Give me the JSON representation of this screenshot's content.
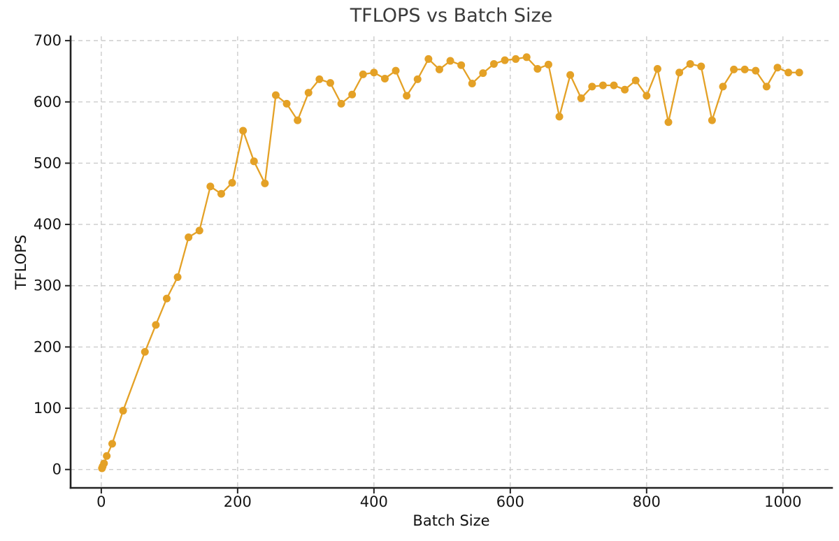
{
  "chart_data": {
    "type": "line",
    "title": "TFLOPS vs Batch Size",
    "xlabel": "Batch Size",
    "ylabel": "TFLOPS",
    "xlim": [
      -45,
      1072
    ],
    "ylim": [
      -30,
      707
    ],
    "xticks": [
      0,
      200,
      400,
      600,
      800,
      1000
    ],
    "yticks": [
      0,
      100,
      200,
      300,
      400,
      500,
      600,
      700
    ],
    "grid": true,
    "grid_style": "dashed",
    "legend_position": "none",
    "line_color": "#E4A126",
    "marker": "circle",
    "series": [
      {
        "name": "TFLOPS",
        "x": [
          1,
          2,
          4,
          8,
          16,
          32,
          64,
          80,
          96,
          112,
          128,
          144,
          160,
          176,
          192,
          208,
          224,
          240,
          256,
          272,
          288,
          304,
          320,
          336,
          352,
          368,
          384,
          400,
          416,
          432,
          448,
          464,
          480,
          496,
          512,
          528,
          544,
          560,
          576,
          592,
          608,
          624,
          640,
          656,
          672,
          688,
          704,
          720,
          736,
          752,
          768,
          784,
          800,
          816,
          832,
          848,
          864,
          880,
          896,
          912,
          928,
          944,
          960,
          976,
          992,
          1008,
          1024
        ],
        "y": [
          2,
          5,
          10,
          22,
          42,
          96,
          192,
          236,
          279,
          314,
          379,
          390,
          462,
          450,
          468,
          553,
          503,
          467,
          611,
          597,
          570,
          615,
          637,
          631,
          597,
          612,
          645,
          648,
          638,
          651,
          610,
          637,
          670,
          653,
          667,
          660,
          630,
          647,
          662,
          668,
          670,
          673,
          654,
          661,
          576,
          644,
          606,
          625,
          627,
          627,
          620,
          635,
          610,
          654,
          567,
          648,
          662,
          658,
          570,
          625,
          653,
          653,
          651,
          625,
          656,
          648,
          648
        ]
      }
    ],
    "colors": {
      "grid": "#cccccc",
      "spine": "#222222",
      "tick_label": "#151515",
      "title": "#3a3a3a"
    }
  }
}
